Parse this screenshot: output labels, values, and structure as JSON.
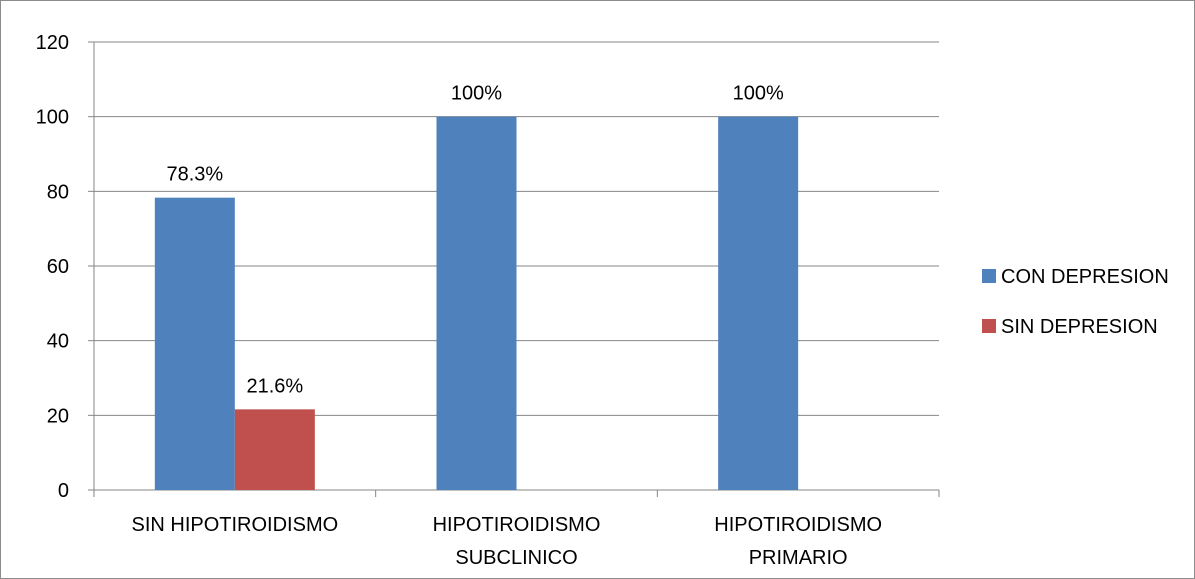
{
  "chart_data": {
    "type": "bar",
    "categories": [
      [
        "SIN HIPOTIROIDISMO"
      ],
      [
        "HIPOTIROIDISMO",
        "SUBCLINICO"
      ],
      [
        "HIPOTIROIDISMO",
        "PRIMARIO"
      ]
    ],
    "series": [
      {
        "name": "CON DEPRESION",
        "color": "#4f81bd",
        "values": [
          78.3,
          100,
          100
        ],
        "data_labels": [
          "78.3%",
          "100%",
          "100%"
        ]
      },
      {
        "name": "SIN DEPRESION",
        "color": "#c0504d",
        "values": [
          21.6,
          0,
          0
        ],
        "data_labels": [
          "21.6%",
          "",
          ""
        ]
      }
    ],
    "y_ticks": [
      "0",
      "20",
      "40",
      "60",
      "80",
      "100",
      "120"
    ],
    "ylim": [
      0,
      120
    ],
    "grid": true,
    "legend_position": "right"
  }
}
